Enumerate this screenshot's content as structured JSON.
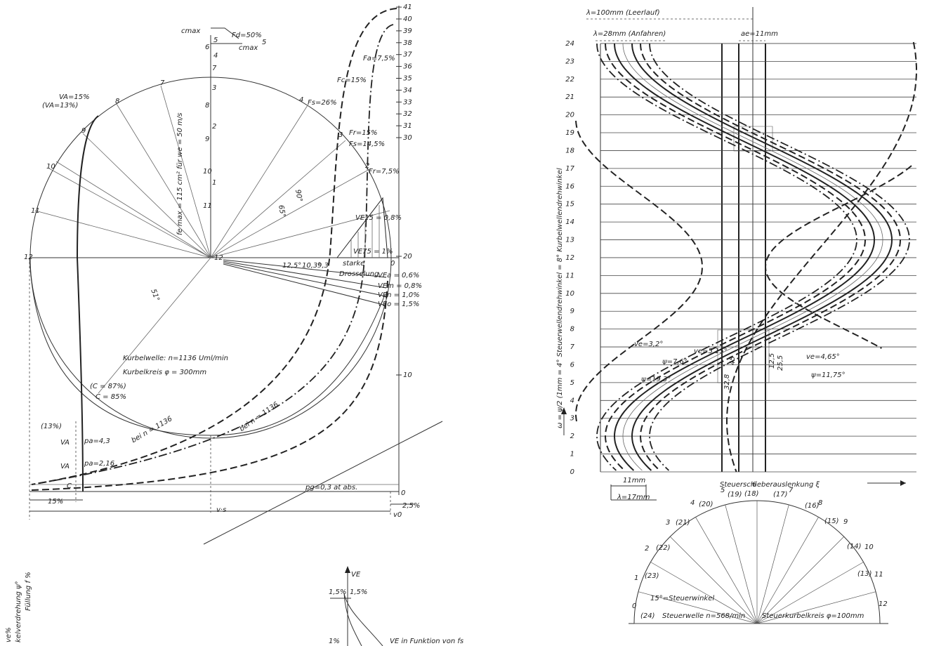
{
  "left_diagram": {
    "labels": [
      "cmax",
      "5",
      "6",
      "4",
      "7",
      "3",
      "8",
      "2",
      "9",
      "10",
      "1",
      "11",
      "12",
      "Fd=50%",
      "cmax",
      "5",
      "7",
      "8",
      "9",
      "10",
      "11",
      "12",
      "4",
      "3",
      "2",
      "Fa=7,5%",
      "Fc=15%",
      "Fs=26%",
      "Fr=15%",
      "Fs=14,5%",
      "Fr=7,5%",
      "VA=15%",
      "(VA=13%)",
      "fe max = 115 cm² für we = 50 m/s",
      "90°",
      "65°",
      "51°",
      "VE15 = 0,8%",
      "VE75 = 1%",
      "0",
      "12,5°",
      "10,3°",
      "9,3",
      "starke",
      "Drosselung",
      "VEa = 0,6%",
      "VEm = 0,8%",
      "VEn = 1,0%",
      "VEo = 1,5%",
      "Kurbelwelle: n=1136 Uml/min",
      "Kurbelkreis φ = 300mm",
      "(C = 87%)",
      "C = 85%",
      "bei n = 1136",
      "bei n = 1136",
      "(13%)",
      "VA",
      "pa=4,3",
      "VA",
      "pa=2,16",
      "C",
      "pg=0,3 at abs.",
      "0",
      "15%",
      "2,5%",
      "v·s",
      "v0"
    ],
    "scale_ticks": [
      41,
      40,
      39,
      38,
      37,
      36,
      35,
      34,
      33,
      32,
      31,
      30,
      20,
      10
    ]
  },
  "right_chart": {
    "header_labels": [
      "λ=100mm (Leerlauf)",
      "λ=28mm (Anfahren)",
      "ae=11mm"
    ],
    "y_axis_label": "ω = ψ/2 (1mm = 4° Steuerwellendrehwinkel = 8° Kurbelwellendrehwinkel",
    "x_axis_label": "Steuerschieberauslenkung ξ",
    "yticks": [
      0,
      1,
      2,
      3,
      4,
      5,
      6,
      7,
      8,
      9,
      10,
      11,
      12,
      13,
      14,
      15,
      16,
      17,
      18,
      19,
      20,
      21,
      22,
      23,
      24
    ],
    "annotations": [
      "ve=3,2°",
      "ψ=7,6°",
      "ve=5,15°",
      "ψ=19,3°",
      "45",
      "32,8",
      "12,5",
      "25,5",
      "ve=4,65°",
      "ψ=11,75°",
      "11mm",
      "λ=17mm"
    ]
  },
  "crank_circle": {
    "labels": [
      "0",
      "(24)",
      "1",
      "(23)",
      "2",
      "(22)",
      "3",
      "(21)",
      "4",
      "(20)",
      "5",
      "(19)",
      "6",
      "(18)",
      "7",
      "(17)",
      "8",
      "(16)",
      "9",
      "(15)",
      "10",
      "(14)",
      "11",
      "(13)",
      "12",
      "15°=Steuerwinkel",
      "Steuerwelle n=568/min",
      "Steuerkurbelkreis φ=100mm"
    ]
  },
  "bottom_left": {
    "labels": [
      "ve%",
      "kelverdrehung ψ°",
      "Füllung f %"
    ]
  },
  "bottom_middle": {
    "labels": [
      "VE",
      "1,5%",
      "1,5%",
      "1%",
      "VE in Funktion von fs"
    ]
  }
}
